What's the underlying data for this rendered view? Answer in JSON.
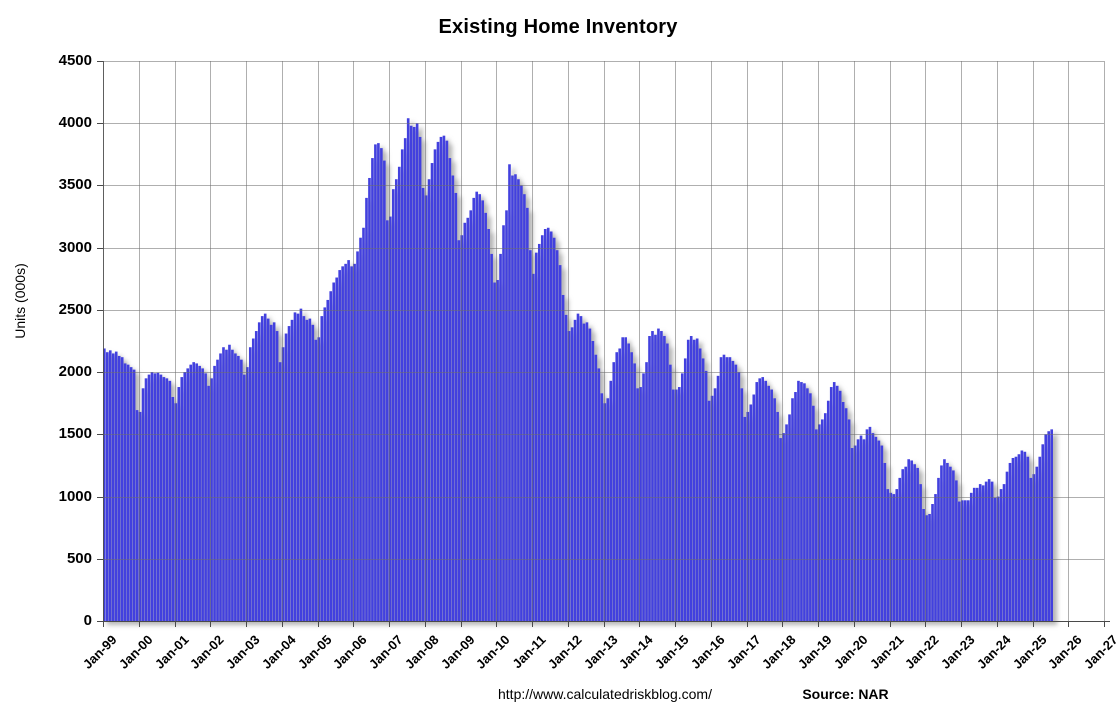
{
  "header": {
    "title": "Existing Home Inventory"
  },
  "footer": {
    "url": "http://www.calculatedriskblog.com/",
    "source_label": "Source: NAR"
  },
  "colors": {
    "bar": "#4240DE",
    "bar_shadow": "#979797",
    "gridline": "#6E6E6E",
    "axis": "#4A4A4A",
    "background": "#FFFFFF",
    "text": "#000000"
  },
  "chart_data": {
    "type": "bar",
    "title": "Existing Home Inventory",
    "xlabel": "",
    "ylabel": "Units (000s)",
    "ylim": [
      0,
      4500
    ],
    "ytick_step": 500,
    "yticks": [
      0,
      500,
      1000,
      1500,
      2000,
      2500,
      3000,
      3500,
      4000,
      4500
    ],
    "xticks": [
      "Jan-99",
      "Jan-00",
      "Jan-01",
      "Jan-02",
      "Jan-03",
      "Jan-04",
      "Jan-05",
      "Jan-06",
      "Jan-07",
      "Jan-08",
      "Jan-09",
      "Jan-10",
      "Jan-11",
      "Jan-12",
      "Jan-13",
      "Jan-14",
      "Jan-15",
      "Jan-16",
      "Jan-17",
      "Jan-18",
      "Jan-19",
      "Jan-20",
      "Jan-21",
      "Jan-22",
      "Jan-23",
      "Jan-24",
      "Jan-25",
      "Jan-26",
      "Jan-27"
    ],
    "grid": true,
    "legend": false,
    "series": [
      {
        "name": "Existing Home Inventory",
        "units": "thousands",
        "frequency": "monthly",
        "start": "Jan-99",
        "end": "Jul-25",
        "values": [
          2190,
          2160,
          2175,
          2150,
          2165,
          2130,
          2120,
          2070,
          2060,
          2040,
          2020,
          1695,
          1680,
          1870,
          1950,
          1980,
          2000,
          1990,
          1995,
          1980,
          1960,
          1950,
          1930,
          1800,
          1750,
          1880,
          1960,
          2000,
          2030,
          2060,
          2080,
          2070,
          2050,
          2030,
          1990,
          1890,
          1950,
          2050,
          2100,
          2150,
          2200,
          2180,
          2220,
          2180,
          2150,
          2130,
          2100,
          1980,
          2040,
          2200,
          2270,
          2330,
          2400,
          2450,
          2470,
          2430,
          2380,
          2400,
          2330,
          2080,
          2200,
          2310,
          2370,
          2420,
          2480,
          2470,
          2510,
          2450,
          2420,
          2430,
          2380,
          2260,
          2280,
          2450,
          2520,
          2580,
          2650,
          2720,
          2760,
          2820,
          2850,
          2870,
          2900,
          2850,
          2870,
          2970,
          3080,
          3160,
          3400,
          3560,
          3720,
          3830,
          3840,
          3800,
          3700,
          3220,
          3250,
          3470,
          3550,
          3650,
          3790,
          3880,
          4040,
          3980,
          3970,
          4000,
          3890,
          3480,
          3420,
          3550,
          3680,
          3790,
          3850,
          3890,
          3900,
          3860,
          3720,
          3580,
          3440,
          3060,
          3100,
          3200,
          3240,
          3300,
          3400,
          3450,
          3430,
          3380,
          3280,
          3150,
          2950,
          2720,
          2740,
          2950,
          3180,
          3300,
          3670,
          3580,
          3590,
          3550,
          3500,
          3430,
          3320,
          2980,
          2790,
          2960,
          3030,
          3100,
          3150,
          3160,
          3130,
          3080,
          2980,
          2860,
          2620,
          2460,
          2330,
          2360,
          2420,
          2470,
          2450,
          2390,
          2400,
          2350,
          2250,
          2140,
          2030,
          1830,
          1750,
          1790,
          1930,
          2080,
          2160,
          2190,
          2280,
          2280,
          2230,
          2160,
          2070,
          1870,
          1880,
          1990,
          2080,
          2290,
          2330,
          2300,
          2350,
          2330,
          2290,
          2230,
          2060,
          1860,
          1860,
          1880,
          1990,
          2110,
          2260,
          2290,
          2260,
          2270,
          2190,
          2110,
          2010,
          1770,
          1810,
          1870,
          1970,
          2120,
          2140,
          2120,
          2120,
          2090,
          2060,
          2000,
          1870,
          1640,
          1680,
          1740,
          1820,
          1920,
          1950,
          1960,
          1930,
          1890,
          1860,
          1790,
          1680,
          1470,
          1510,
          1580,
          1660,
          1790,
          1840,
          1930,
          1920,
          1910,
          1870,
          1830,
          1730,
          1540,
          1580,
          1620,
          1670,
          1770,
          1880,
          1920,
          1890,
          1850,
          1760,
          1710,
          1620,
          1390,
          1410,
          1460,
          1490,
          1460,
          1540,
          1560,
          1510,
          1480,
          1450,
          1410,
          1270,
          1060,
          1030,
          1020,
          1060,
          1150,
          1220,
          1240,
          1300,
          1290,
          1260,
          1230,
          1100,
          900,
          850,
          860,
          940,
          1020,
          1150,
          1250,
          1300,
          1270,
          1240,
          1210,
          1130,
          960,
          970,
          970,
          970,
          1030,
          1070,
          1070,
          1100,
          1090,
          1120,
          1140,
          1120,
          990,
          1000,
          1060,
          1100,
          1200,
          1270,
          1310,
          1320,
          1340,
          1370,
          1360,
          1320,
          1150,
          1180,
          1240,
          1320,
          1420,
          1500,
          1525,
          1540
        ]
      }
    ]
  }
}
